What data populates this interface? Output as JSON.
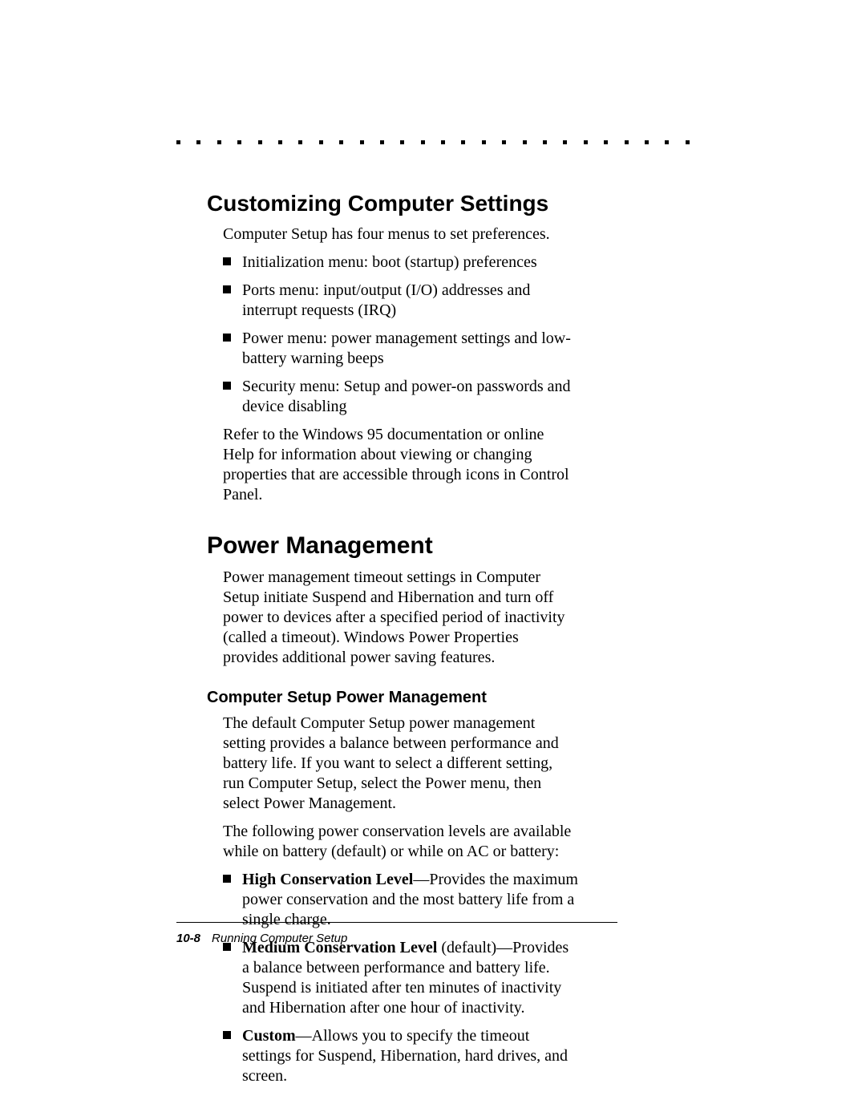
{
  "decor": {
    "dot_count": 26,
    "dot_color": "#000000"
  },
  "section1": {
    "heading": "Customizing Computer Settings",
    "intro": "Computer Setup has four menus to set preferences.",
    "bullets": [
      "Initialization menu: boot (startup) preferences",
      "Ports menu: input/output (I/O) addresses and interrupt requests (IRQ)",
      "Power menu: power management settings and low-battery warning beeps",
      "Security menu: Setup and power-on passwords and device disabling"
    ],
    "closing": "Refer to the Windows 95 documentation or online Help for information about viewing or changing properties that are accessible through icons in Control Panel."
  },
  "section2": {
    "heading": "Power Management",
    "intro": "Power management timeout settings in Computer Setup initiate Suspend and Hibernation and turn off power to devices after a specified period of inactivity (called a timeout). Windows Power Properties provides additional power saving features.",
    "sub": {
      "heading": "Computer Setup Power Management",
      "para1": "The default Computer Setup power management setting provides a balance between performance and battery life. If you want to select a different setting, run Computer Setup, select the Power menu, then select Power Management.",
      "para2": "The following power conservation levels are available while on battery (default) or while on AC or battery:",
      "bullets": [
        {
          "bold": "High Conservation Level",
          "rest": "—Provides the maximum power conservation and the most battery life from a single charge."
        },
        {
          "bold": "Medium Conservation Level",
          "mid": " (default)",
          "rest": "—Provides a balance between performance and battery life. Suspend is initiated after ten minutes of inactivity and Hibernation after one hour of inactivity."
        },
        {
          "bold": "Custom",
          "rest": "—Allows you to specify the timeout settings for Suspend, Hibernation, hard drives, and screen."
        }
      ]
    }
  },
  "footer": {
    "page_number": "10-8",
    "title": "Running Computer Setup"
  },
  "colors": {
    "background": "#ffffff",
    "text": "#000000"
  },
  "typography": {
    "body_font": "Times New Roman",
    "heading_font": "Arial",
    "body_size_pt": 15,
    "h1_size_pt": 21,
    "h2_size_pt": 15
  }
}
